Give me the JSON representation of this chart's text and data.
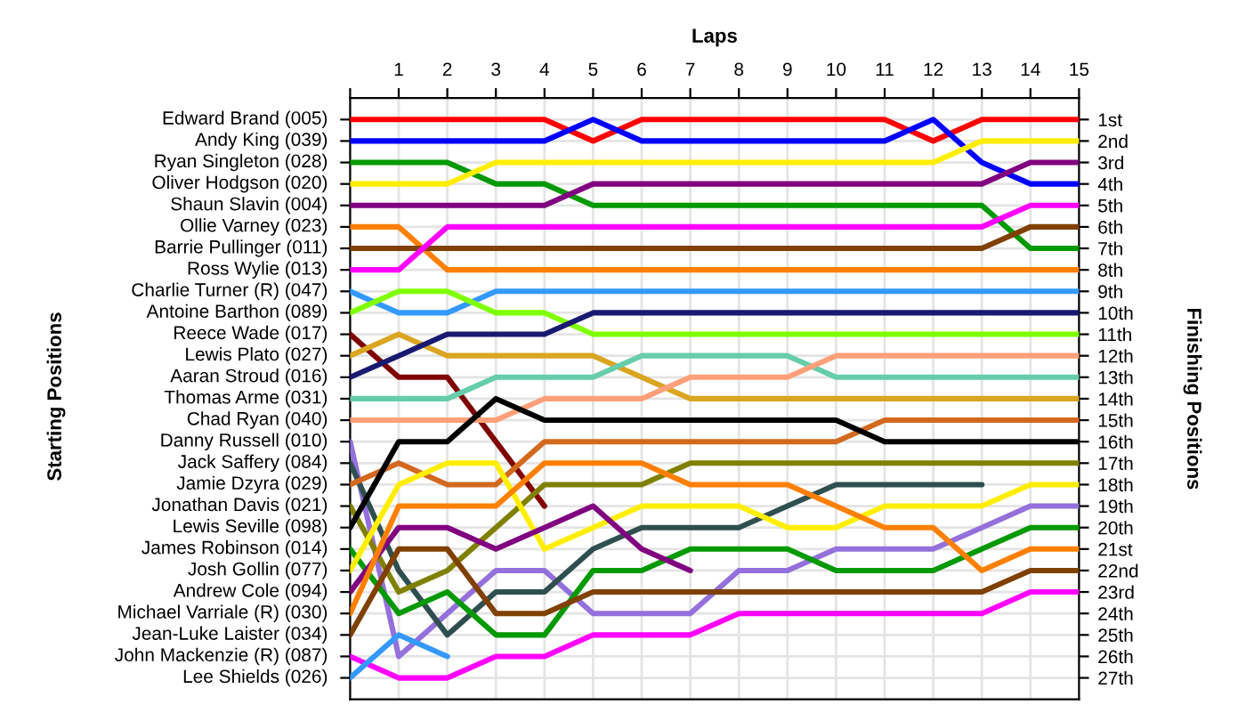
{
  "chart_data": {
    "type": "line",
    "xlabel": "Laps",
    "ylabel": "Finishing Positions",
    "x": [
      0,
      1,
      2,
      3,
      4,
      5,
      6,
      7,
      8,
      9,
      10,
      11,
      12,
      13,
      14,
      15
    ],
    "xlim": [
      0,
      15
    ],
    "xticks": [
      {
        "value": 0,
        "label": null
      },
      1,
      2,
      3,
      4,
      5,
      6,
      7,
      8,
      9,
      10,
      11,
      12,
      13,
      14,
      15
    ],
    "ylim": [
      28,
      0
    ],
    "yticks": [
      {
        "value": 1,
        "label": "1st"
      },
      {
        "value": 2,
        "label": "2nd"
      },
      {
        "value": 3,
        "label": "3rd"
      },
      {
        "value": 4,
        "label": "4th"
      },
      {
        "value": 5,
        "label": "5th"
      },
      {
        "value": 6,
        "label": "6th"
      },
      {
        "value": 7,
        "label": "7th"
      },
      {
        "value": 8,
        "label": "8th"
      },
      {
        "value": 9,
        "label": "9th"
      },
      {
        "value": 10,
        "label": "10th"
      },
      {
        "value": 11,
        "label": "11th"
      },
      {
        "value": 12,
        "label": "12th"
      },
      {
        "value": 13,
        "label": "13th"
      },
      {
        "value": 14,
        "label": "14th"
      },
      {
        "value": 15,
        "label": "15th"
      },
      {
        "value": 16,
        "label": "16th"
      },
      {
        "value": 17,
        "label": "17th"
      },
      {
        "value": 18,
        "label": "18th"
      },
      {
        "value": 19,
        "label": "19th"
      },
      {
        "value": 20,
        "label": "20th"
      },
      {
        "value": 21,
        "label": "21st"
      },
      {
        "value": 22,
        "label": "22nd"
      },
      {
        "value": 23,
        "label": "23rd"
      },
      {
        "value": 24,
        "label": "24th"
      },
      {
        "value": 25,
        "label": "25th"
      },
      {
        "value": 26,
        "label": "26th"
      },
      {
        "value": 27,
        "label": "27th"
      }
    ],
    "grid": true,
    "marker": "none",
    "line_style": "solid",
    "annotations": [
      "Starting Positions",
      "Edward Brand (005)",
      "Andy King (039)",
      "Ryan Singleton (028)",
      "Oliver Hodgson (020)",
      "Shaun Slavin (004)",
      "Ollie Varney (023)",
      "Barrie Pullinger (011)",
      "Ross Wylie (013)",
      "Charlie Turner (R) (047)",
      "Antoine Barthon (089)",
      "Reece Wade (017)",
      "Lewis Plato (027)",
      "Aaran Stroud (016)",
      "Thomas Arme (031)",
      "Chad Ryan (040)",
      "Danny Russell (010)",
      "Jack Saffery (084)",
      "Jamie Dzyra (029)",
      "Jonathan Davis (021)",
      "Lewis Seville (098)",
      "James Robinson (014)",
      "Josh Gollin (077)",
      "Andrew Cole (094)",
      "Michael Varriale (R) (030)",
      "Jean-Luke Laister (034)",
      "John Mackenzie (R) (087)",
      "Lee Shields (026)"
    ],
    "series": [
      {
        "color": "#ff0000",
        "values": [
          1,
          1,
          1,
          1,
          1,
          2,
          1,
          1,
          1,
          1,
          1,
          1,
          2,
          1,
          1,
          1
        ]
      },
      {
        "color": "#0000ff",
        "values": [
          2,
          2,
          2,
          2,
          2,
          1,
          2,
          2,
          2,
          2,
          2,
          2,
          1,
          3,
          4,
          4
        ]
      },
      {
        "color": "#009900",
        "values": [
          3,
          3,
          3,
          4,
          4,
          5,
          5,
          5,
          5,
          5,
          5,
          5,
          5,
          5,
          7,
          7
        ]
      },
      {
        "color": "#ffee00",
        "values": [
          4,
          4,
          4,
          3,
          3,
          3,
          3,
          3,
          3,
          3,
          3,
          3,
          3,
          2,
          2,
          2
        ]
      },
      {
        "color": "#800080",
        "values": [
          5,
          5,
          5,
          5,
          5,
          4,
          4,
          4,
          4,
          4,
          4,
          4,
          4,
          4,
          3,
          3
        ]
      },
      {
        "color": "#ff8000",
        "values": [
          6,
          6,
          8,
          8,
          8,
          8,
          8,
          8,
          8,
          8,
          8,
          8,
          8,
          8,
          8,
          8
        ]
      },
      {
        "color": "#804000",
        "values": [
          7,
          7,
          7,
          7,
          7,
          7,
          7,
          7,
          7,
          7,
          7,
          7,
          7,
          7,
          6,
          6
        ]
      },
      {
        "color": "#ff00ff",
        "values": [
          8,
          8,
          6,
          6,
          6,
          6,
          6,
          6,
          6,
          6,
          6,
          6,
          6,
          6,
          5,
          5
        ]
      },
      {
        "color": "#3399ff",
        "values": [
          9,
          10,
          10,
          9,
          9,
          9,
          9,
          9,
          9,
          9,
          9,
          9,
          9,
          9,
          9,
          9
        ]
      },
      {
        "color": "#80ff00",
        "values": [
          10,
          9,
          9,
          10,
          10,
          11,
          11,
          11,
          11,
          11,
          11,
          11,
          11,
          11,
          11,
          11
        ]
      },
      {
        "color": "#800000",
        "values": [
          11,
          13,
          13,
          16,
          19,
          null,
          null,
          null,
          null,
          null,
          null,
          null,
          null,
          null,
          null,
          null
        ]
      },
      {
        "color": "#daa520",
        "values": [
          12,
          11,
          12,
          12,
          12,
          12,
          13,
          14,
          14,
          14,
          14,
          14,
          14,
          14,
          14,
          14
        ]
      },
      {
        "color": "#191970",
        "values": [
          13,
          12,
          11,
          11,
          11,
          10,
          10,
          10,
          10,
          10,
          10,
          10,
          10,
          10,
          10,
          10
        ]
      },
      {
        "color": "#66cdaa",
        "values": [
          14,
          14,
          14,
          13,
          13,
          13,
          12,
          12,
          12,
          12,
          13,
          13,
          13,
          13,
          13,
          13
        ]
      },
      {
        "color": "#ffa07a",
        "values": [
          15,
          15,
          15,
          15,
          14,
          14,
          14,
          13,
          13,
          13,
          12,
          12,
          12,
          12,
          12,
          12
        ]
      },
      {
        "color": "#9370db",
        "values": [
          16,
          26,
          24,
          22,
          22,
          24,
          24,
          24,
          22,
          22,
          21,
          21,
          21,
          20,
          19,
          19
        ]
      },
      {
        "color": "#2f4f4f",
        "values": [
          17,
          22,
          25,
          23,
          23,
          21,
          20,
          20,
          20,
          19,
          18,
          18,
          18,
          18,
          null,
          null
        ]
      },
      {
        "color": "#d2691e",
        "values": [
          18,
          17,
          18,
          18,
          16,
          16,
          16,
          16,
          16,
          16,
          16,
          15,
          15,
          15,
          15,
          15
        ]
      },
      {
        "color": "#808000",
        "values": [
          19,
          23,
          22,
          20,
          18,
          18,
          18,
          17,
          17,
          17,
          17,
          17,
          17,
          17,
          17,
          17
        ]
      },
      {
        "color": "#000000",
        "values": [
          20,
          16,
          16,
          14,
          15,
          15,
          15,
          15,
          15,
          15,
          15,
          16,
          16,
          16,
          16,
          16
        ]
      },
      {
        "color": "#009900",
        "values": [
          21,
          24,
          23,
          25,
          25,
          22,
          22,
          21,
          21,
          21,
          22,
          22,
          22,
          21,
          20,
          20
        ]
      },
      {
        "color": "#ffee00",
        "values": [
          22,
          18,
          17,
          17,
          21,
          20,
          19,
          19,
          19,
          20,
          20,
          19,
          19,
          19,
          18,
          18
        ]
      },
      {
        "color": "#800080",
        "values": [
          23,
          20,
          20,
          21,
          20,
          19,
          21,
          22,
          null,
          null,
          null,
          null,
          null,
          null,
          null,
          null
        ]
      },
      {
        "color": "#ff8000",
        "values": [
          24,
          19,
          19,
          19,
          17,
          17,
          17,
          18,
          18,
          18,
          19,
          20,
          20,
          22,
          21,
          21
        ]
      },
      {
        "color": "#804000",
        "values": [
          25,
          21,
          21,
          24,
          24,
          23,
          23,
          23,
          23,
          23,
          23,
          23,
          23,
          23,
          22,
          22
        ]
      },
      {
        "color": "#ff00ff",
        "values": [
          26,
          27,
          27,
          26,
          26,
          25,
          25,
          25,
          24,
          24,
          24,
          24,
          24,
          24,
          23,
          23
        ]
      },
      {
        "color": "#3399ff",
        "values": [
          27,
          25,
          26,
          null,
          null,
          null,
          null,
          null,
          null,
          null,
          null,
          null,
          null,
          null,
          null,
          null
        ]
      }
    ]
  }
}
